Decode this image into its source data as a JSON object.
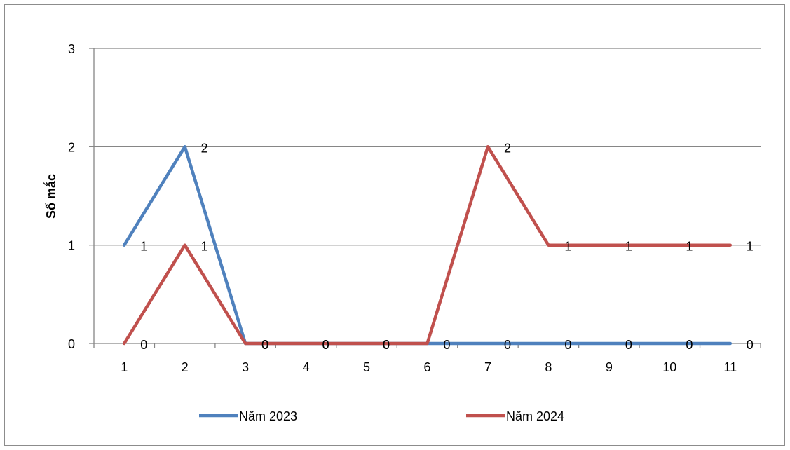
{
  "chart_data": {
    "type": "line",
    "x": [
      "1",
      "2",
      "3",
      "4",
      "5",
      "6",
      "7",
      "8",
      "9",
      "10",
      "11"
    ],
    "ylabel": "Số mắc",
    "ylim": [
      0,
      3
    ],
    "yticks": [
      "0",
      "1",
      "2",
      "3"
    ],
    "grid": true,
    "legend_position": "bottom",
    "series": [
      {
        "name": "Năm 2023",
        "color": "#4f81bd",
        "values": [
          1,
          2,
          0,
          0,
          0,
          0,
          0,
          0,
          0,
          0,
          0
        ],
        "labels": [
          "1",
          "2",
          "",
          "",
          "",
          "",
          "0",
          "0",
          "0",
          "0",
          "0"
        ]
      },
      {
        "name": "Năm 2024",
        "color": "#c0504d",
        "values": [
          0,
          1,
          0,
          0,
          0,
          0,
          2,
          1,
          1,
          1,
          1
        ],
        "labels": [
          "0",
          "1",
          "0",
          "0",
          "0",
          "",
          "2",
          "1",
          "1",
          "1",
          "1"
        ]
      }
    ],
    "shared_labels": [
      "",
      "",
      "0",
      "0",
      "0",
      "0",
      "",
      "",
      "",
      "",
      ""
    ]
  }
}
